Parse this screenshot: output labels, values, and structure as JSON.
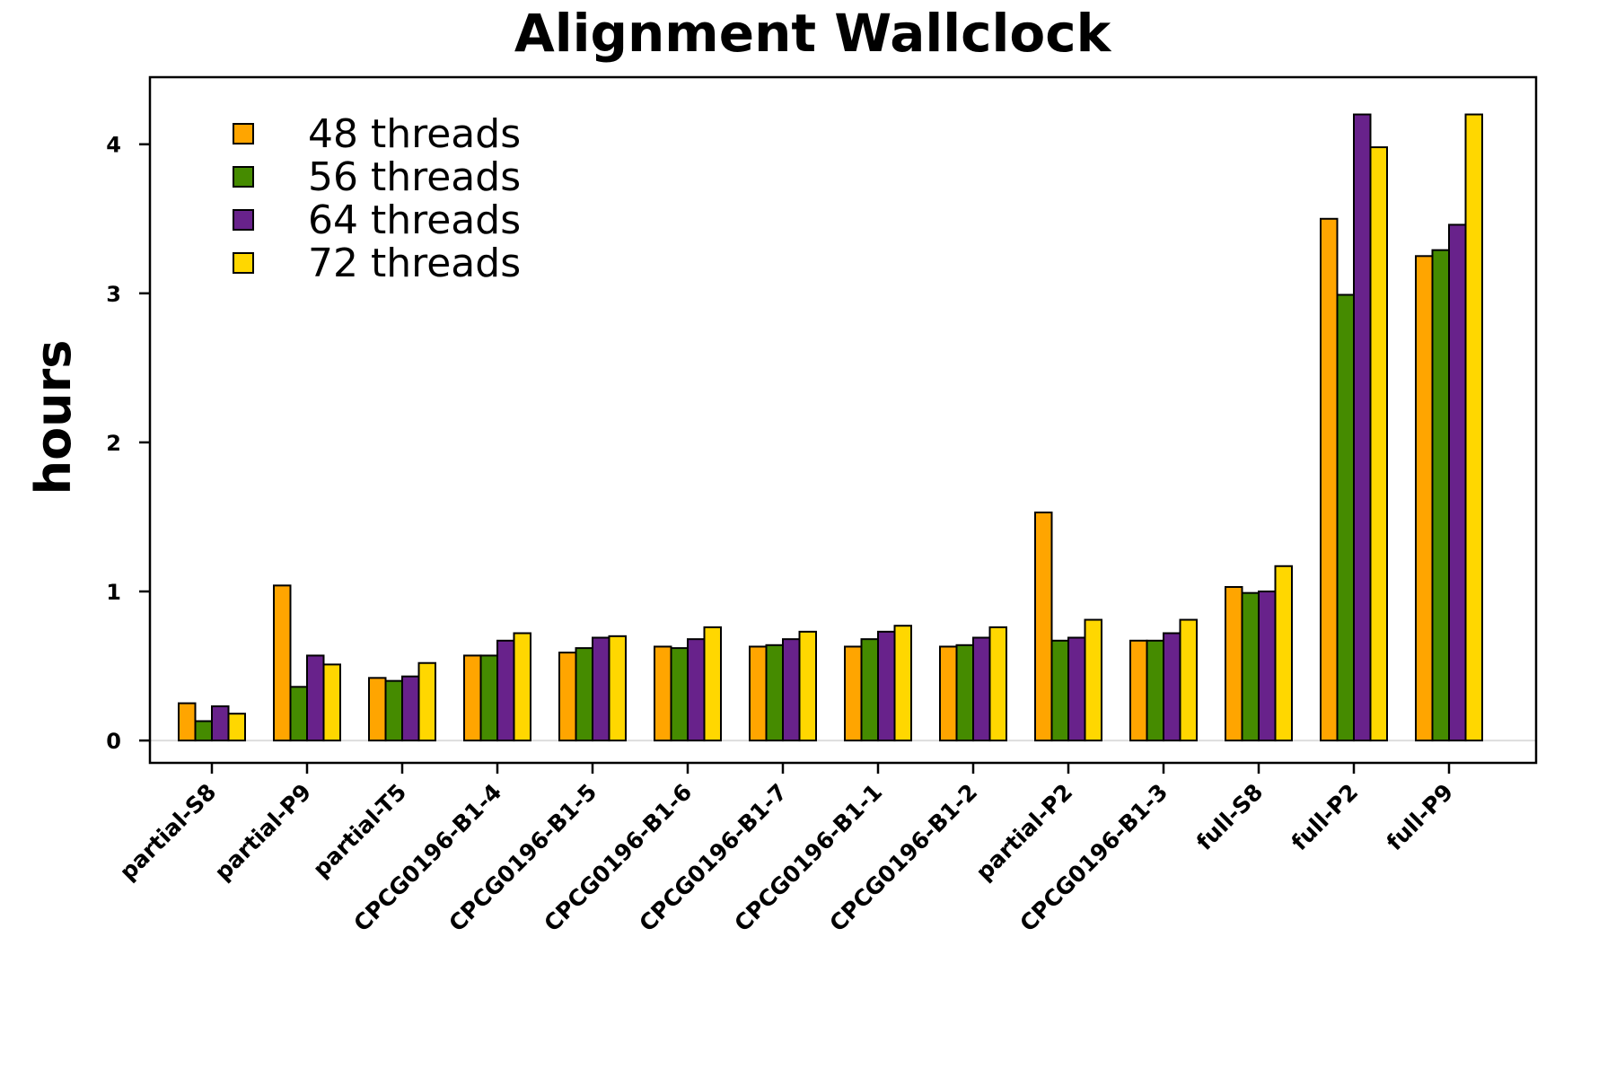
{
  "chart_data": {
    "type": "bar",
    "title": "Alignment Wallclock",
    "xlabel": "",
    "ylabel": "hours",
    "ylim": [
      -0.15,
      4.45
    ],
    "yticks": [
      0,
      1,
      2,
      3,
      4
    ],
    "grid": false,
    "legend_position": "top-left",
    "categories": [
      "partial-S8",
      "partial-P9",
      "partial-T5",
      "CPCG0196-B1-4",
      "CPCG0196-B1-5",
      "CPCG0196-B1-6",
      "CPCG0196-B1-7",
      "CPCG0196-B1-1",
      "CPCG0196-B1-2",
      "partial-P2",
      "CPCG0196-B1-3",
      "full-S8",
      "full-P2",
      "full-P9"
    ],
    "series": [
      {
        "name": "48 threads",
        "color": "#FFA500",
        "values": [
          0.25,
          1.04,
          0.42,
          0.57,
          0.59,
          0.63,
          0.63,
          0.63,
          0.63,
          1.53,
          0.67,
          1.03,
          3.5,
          3.25
        ]
      },
      {
        "name": "56 threads",
        "color": "#458B00",
        "values": [
          0.13,
          0.36,
          0.4,
          0.57,
          0.62,
          0.62,
          0.64,
          0.68,
          0.64,
          0.67,
          0.67,
          0.99,
          2.99,
          3.29
        ]
      },
      {
        "name": "64 threads",
        "color": "#68228B",
        "values": [
          0.23,
          0.57,
          0.43,
          0.67,
          0.69,
          0.68,
          0.68,
          0.73,
          0.69,
          0.69,
          0.72,
          1.0,
          4.2,
          3.46
        ]
      },
      {
        "name": "72 threads",
        "color": "#FFD700",
        "values": [
          0.18,
          0.51,
          0.52,
          0.72,
          0.7,
          0.76,
          0.73,
          0.77,
          0.76,
          0.81,
          0.81,
          1.17,
          3.98,
          4.2
        ]
      }
    ]
  }
}
